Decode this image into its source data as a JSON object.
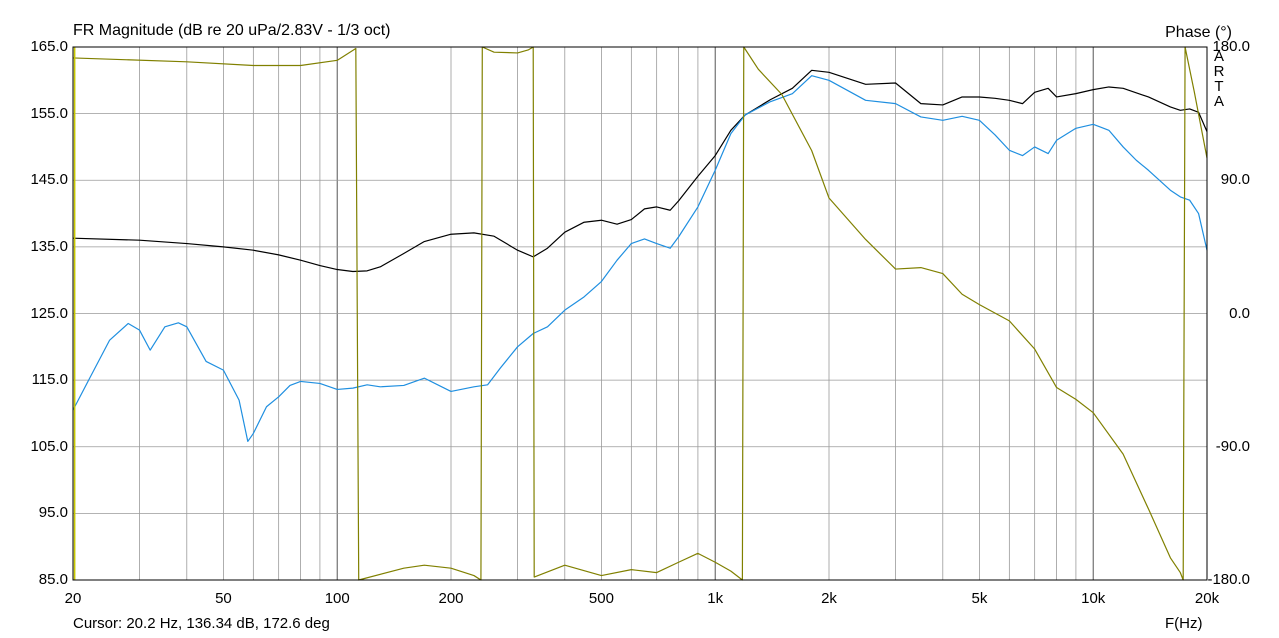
{
  "title": "FR Magnitude (dB re 20 uPa/2.83V - 1/3 oct)",
  "right_axis_title": "Phase (°)",
  "watermark": [
    "A",
    "R",
    "T",
    "A"
  ],
  "cursor_text": "Cursor: 20.2 Hz, 136.34 dB, 172.6 deg",
  "x_unit_label": "F(Hz)",
  "colors": {
    "background": "#ffffff",
    "grid": "#9a9a9a",
    "border": "#000000",
    "black_series": "#000000",
    "blue_series": "#1f8fe0",
    "phase_series": "#808000",
    "cursor_line": "#c8c800"
  },
  "chart_data": {
    "type": "line",
    "x_scale": "log",
    "xlim": [
      20,
      20000
    ],
    "ylim": [
      85,
      165
    ],
    "y2lim": [
      -180,
      180
    ],
    "grid": true,
    "x_ticks": [
      {
        "value": 20,
        "label": "20"
      },
      {
        "value": 50,
        "label": "50"
      },
      {
        "value": 100,
        "label": "100"
      },
      {
        "value": 200,
        "label": "200"
      },
      {
        "value": 500,
        "label": "500"
      },
      {
        "value": 1000,
        "label": "1k"
      },
      {
        "value": 2000,
        "label": "2k"
      },
      {
        "value": 5000,
        "label": "5k"
      },
      {
        "value": 10000,
        "label": "10k"
      },
      {
        "value": 20000,
        "label": "20k"
      }
    ],
    "y_ticks": [
      "165.0",
      "155.0",
      "145.0",
      "135.0",
      "125.0",
      "115.0",
      "105.0",
      "95.0",
      "85.0"
    ],
    "y2_ticks": [
      "180.0",
      "90.0",
      "0.0",
      "-90.0",
      "-180.0"
    ],
    "series": [
      {
        "axis": "left",
        "color": "#000000",
        "x": [
          20,
          30,
          40,
          50,
          60,
          70,
          80,
          90,
          100,
          110,
          120,
          130,
          150,
          170,
          200,
          230,
          260,
          300,
          330,
          360,
          400,
          450,
          500,
          550,
          600,
          650,
          700,
          760,
          800,
          900,
          1000,
          1100,
          1200,
          1400,
          1600,
          1800,
          2000,
          2500,
          3000,
          3500,
          4000,
          4500,
          5000,
          5500,
          6000,
          6500,
          7000,
          7600,
          8000,
          9000,
          10000,
          11000,
          12000,
          14000,
          16000,
          17000,
          18000,
          19000,
          20000
        ],
        "y": [
          136.3,
          136.0,
          135.5,
          135.0,
          134.5,
          133.8,
          133.0,
          132.2,
          131.6,
          131.3,
          131.4,
          132.0,
          134.0,
          135.8,
          136.9,
          137.1,
          136.6,
          134.5,
          133.5,
          134.8,
          137.2,
          138.7,
          139.0,
          138.4,
          139.1,
          140.7,
          141.0,
          140.5,
          141.9,
          145.6,
          148.7,
          152.5,
          154.8,
          157.1,
          158.8,
          161.5,
          161.2,
          159.4,
          159.6,
          156.5,
          156.3,
          157.5,
          157.5,
          157.3,
          157.0,
          156.5,
          158.2,
          158.8,
          157.5,
          158.0,
          158.6,
          159.0,
          158.8,
          157.5,
          156.0,
          155.5,
          155.7,
          155.2,
          152.3
        ]
      },
      {
        "axis": "left",
        "color": "#1f8fe0",
        "x": [
          20,
          22,
          25,
          28,
          30,
          32,
          35,
          38,
          40,
          45,
          50,
          55,
          58,
          60,
          65,
          70,
          75,
          80,
          90,
          100,
          110,
          120,
          130,
          150,
          170,
          200,
          230,
          250,
          270,
          300,
          330,
          360,
          400,
          450,
          500,
          550,
          600,
          650,
          700,
          760,
          800,
          900,
          1000,
          1100,
          1200,
          1400,
          1600,
          1800,
          2000,
          2500,
          3000,
          3500,
          4000,
          4500,
          5000,
          5500,
          6000,
          6500,
          7000,
          7600,
          8000,
          9000,
          10000,
          11000,
          12000,
          13000,
          14000,
          16000,
          17000,
          18000,
          19000,
          20000
        ],
        "y": [
          110.5,
          115.0,
          121.0,
          123.5,
          122.5,
          119.5,
          123.0,
          123.6,
          123.0,
          117.8,
          116.5,
          112.0,
          105.8,
          107.0,
          111.0,
          112.5,
          114.2,
          114.8,
          114.5,
          113.6,
          113.8,
          114.3,
          114.0,
          114.2,
          115.3,
          113.3,
          114.0,
          114.3,
          116.8,
          120.0,
          122.0,
          123.0,
          125.5,
          127.5,
          129.8,
          133.0,
          135.5,
          136.2,
          135.5,
          134.8,
          136.5,
          141.0,
          146.5,
          152.0,
          154.8,
          156.8,
          158.0,
          160.7,
          160.0,
          157.0,
          156.5,
          154.5,
          154.0,
          154.6,
          154.0,
          151.8,
          149.5,
          148.7,
          150.0,
          149.0,
          151.0,
          152.8,
          153.4,
          152.5,
          150.0,
          148.0,
          146.5,
          143.5,
          142.5,
          142.0,
          140.0,
          134.5
        ]
      },
      {
        "axis": "right",
        "color": "#808000",
        "x": [
          20,
          40,
          60,
          80,
          100,
          112,
          114,
          150,
          170,
          200,
          230,
          240,
          242,
          260,
          300,
          320,
          330,
          332,
          400,
          500,
          600,
          700,
          800,
          900,
          1000,
          1100,
          1180,
          1190,
          1300,
          1500,
          1800,
          2000,
          2500,
          3000,
          3500,
          4000,
          4500,
          5000,
          6000,
          7000,
          8000,
          9000,
          10000,
          12000,
          14000,
          16000,
          17000,
          17300,
          17500,
          18500,
          20000
        ],
        "y": [
          172.6,
          170.0,
          167.5,
          167.5,
          171.0,
          179.0,
          -180.0,
          -172.0,
          -170.0,
          -172.0,
          -177.0,
          -180.0,
          180.0,
          176.5,
          176.0,
          178.0,
          180.0,
          -178.0,
          -170.0,
          -177.0,
          -173.0,
          -175.0,
          -168.0,
          -162.0,
          -168.0,
          -174.0,
          -180.0,
          180.0,
          165.0,
          148.0,
          110.0,
          78.0,
          50.0,
          30.0,
          31.0,
          27.0,
          13.0,
          6.0,
          -5.0,
          -24.0,
          -50.0,
          -58.0,
          -67.0,
          -95.0,
          -132.0,
          -165.0,
          -175.0,
          -180.0,
          180.0,
          150.0,
          105.0
        ]
      },
      {
        "axis": "left",
        "color": "#c8c800",
        "x": [
          20.2,
          20.2
        ],
        "y": [
          85,
          165
        ]
      }
    ]
  }
}
